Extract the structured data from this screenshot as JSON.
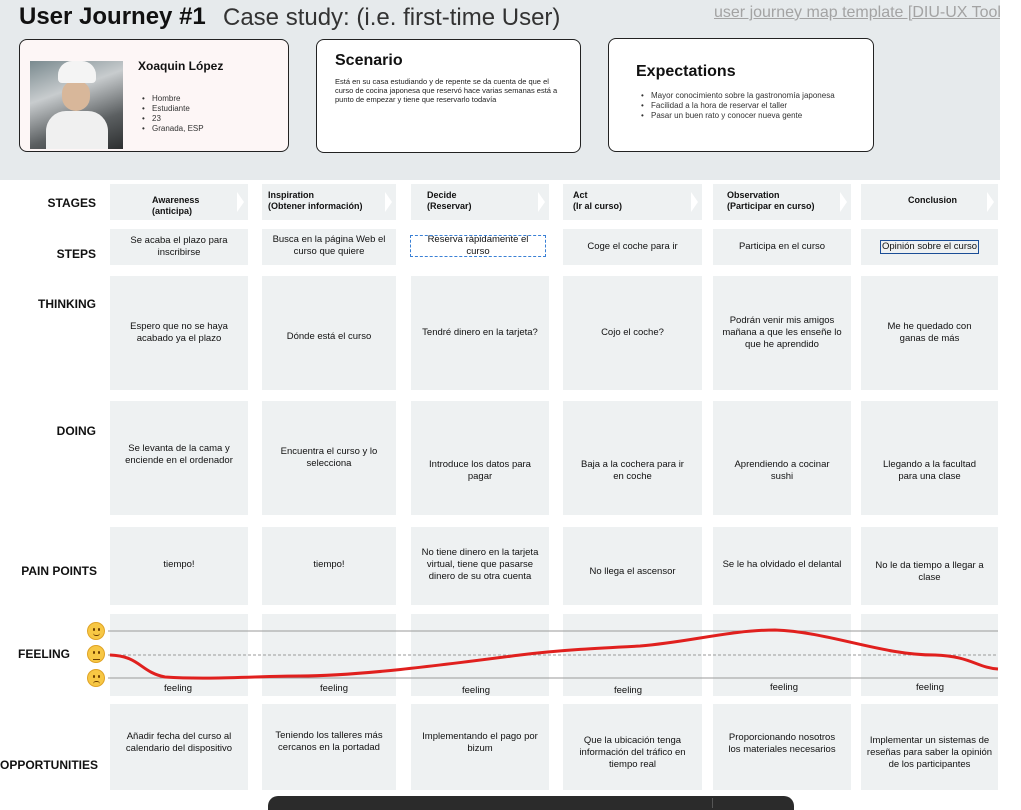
{
  "header": {
    "title": "User Journey #1",
    "subtitle": "Case study: (i.e. first-time User)",
    "template_link": "user journey map template [DIU-UX Toolk"
  },
  "persona": {
    "name": "Xoaquin López",
    "details": [
      "Hombre",
      "Estudiante",
      "23",
      "Granada, ESP"
    ]
  },
  "scenario": {
    "title": "Scenario",
    "text": "Está en su casa estudiando y de repente se da cuenta de que el curso de cocina japonesa que reservó hace varias semanas está a punto de empezar y tiene que reservarlo todavía"
  },
  "expectations": {
    "title": "Expectations",
    "items": [
      "Mayor conocimiento sobre la gastronomía japonesa",
      "Facilidad a la hora de reservar el taller",
      "Pasar un buen rato y conocer nueva gente"
    ]
  },
  "row_labels": {
    "stages": "STAGES",
    "steps": "STEPS",
    "thinking": "THINKING",
    "doing": "DOING",
    "pain_points": "PAIN POINTS",
    "feeling": "FEELING",
    "opportunities": "OPPORTUNITIES"
  },
  "stages": [
    {
      "line1": "Awareness",
      "line2": "(anticipa)"
    },
    {
      "line1": "Inspiration",
      "line2": "(Obtener información)"
    },
    {
      "line1": "Decide",
      "line2": "(Reservar)"
    },
    {
      "line1": "Act",
      "line2": "(Ir al curso)"
    },
    {
      "line1": "Observation",
      "line2": "(Participar en curso)"
    },
    {
      "line1": "Conclusion",
      "line2": ""
    }
  ],
  "steps": [
    "Se acaba el plazo para inscribirse",
    "Busca en la página Web el curso que quiere",
    "Reserva rápidamente el curso",
    "Coge el coche para ir",
    "Participa en el curso",
    "Opinión sobre el curso"
  ],
  "thinking": [
    "Espero que no se haya acabado ya el plazo",
    "Dónde está el curso",
    "Tendré dinero en la tarjeta?",
    "Cojo el coche?",
    "Podrán venir mis amigos mañana a que les enseñe lo que he aprendido",
    "Me he quedado con ganas de más"
  ],
  "doing": [
    "Se levanta de la cama y enciende en el ordenador",
    "Encuentra el curso y lo selecciona",
    "Introduce los datos para pagar",
    "Baja a la cochera para ir en coche",
    "Aprendiendo a cocinar sushi",
    "Llegando a la facultad para una clase"
  ],
  "pain_points": [
    "tiempo!",
    "tiempo!",
    "No tiene dinero en la tarjeta virtual, tiene que pasarse dinero de su otra cuenta",
    "No llega el ascensor",
    "Se le ha olvidado el delantal",
    "No le da tiempo a llegar a clase"
  ],
  "feeling": {
    "labels": [
      "feeling",
      "feeling",
      "feeling",
      "feeling",
      "feeling",
      "feeling"
    ],
    "levels": [
      "neutral",
      "sad",
      "sad",
      "neutral",
      "happy",
      "neutral"
    ],
    "emojis": [
      "happy-face-icon",
      "neutral-face-icon",
      "sad-face-icon"
    ],
    "curve_color": "#e0201e"
  },
  "opportunities": [
    "Añadir fecha del curso al calendario del dispositivo",
    "Teniendo los talleres más cercanos en la portadad",
    "Implementando el pago por bizum",
    "Que la ubicación tenga información del tráfico en tiempo real",
    "Proporcionando nosotros los materiales necesarios",
    "Implementar un sistemas de reseñas para saber la opinión de los participantes"
  ],
  "colors": {
    "header_band": "#e6eaec",
    "cell_bg": "#eef1f2",
    "curve": "#e0201e"
  }
}
